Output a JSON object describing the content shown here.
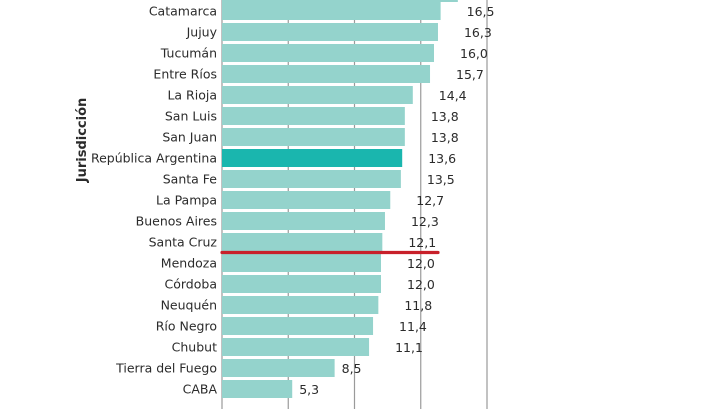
{
  "chart_data": {
    "type": "bar",
    "orientation": "horizontal",
    "ylabel": "Jurisdicción",
    "xlim": [
      0,
      20
    ],
    "grid": "vertical",
    "categories": [
      "Catamarca",
      "Jujuy",
      "Tucumán",
      "Entre Ríos",
      "La Rioja",
      "San Luis",
      "San Juan",
      "República Argentina",
      "Santa Fe",
      "La Pampa",
      "Buenos Aires",
      "Santa Cruz",
      "Mendoza",
      "Córdoba",
      "Neuquén",
      "Río Negro",
      "Chubut",
      "Tierra del Fuego",
      "CABA"
    ],
    "values": [
      16.5,
      16.3,
      16.0,
      15.7,
      14.4,
      13.8,
      13.8,
      13.6,
      13.5,
      12.7,
      12.3,
      12.1,
      12.0,
      12.0,
      11.8,
      11.4,
      11.1,
      8.5,
      5.3
    ],
    "value_labels": [
      "16,5",
      "16,3",
      "16,0",
      "15,7",
      "14,4",
      "13,8",
      "13,8",
      "13,6",
      "13,5",
      "12,7",
      "12,3",
      "12,1",
      "12,0",
      "12,0",
      "11,8",
      "11,4",
      "11,1",
      "8,5",
      "5,3"
    ],
    "highlight_category": "República Argentina",
    "reference_line_below": "Santa Cruz",
    "colors": {
      "bar": "#94d3cc",
      "bar_highlight": "#1ab6ae",
      "reference_line": "#c8202a",
      "grid": "#9a9a9a"
    }
  }
}
